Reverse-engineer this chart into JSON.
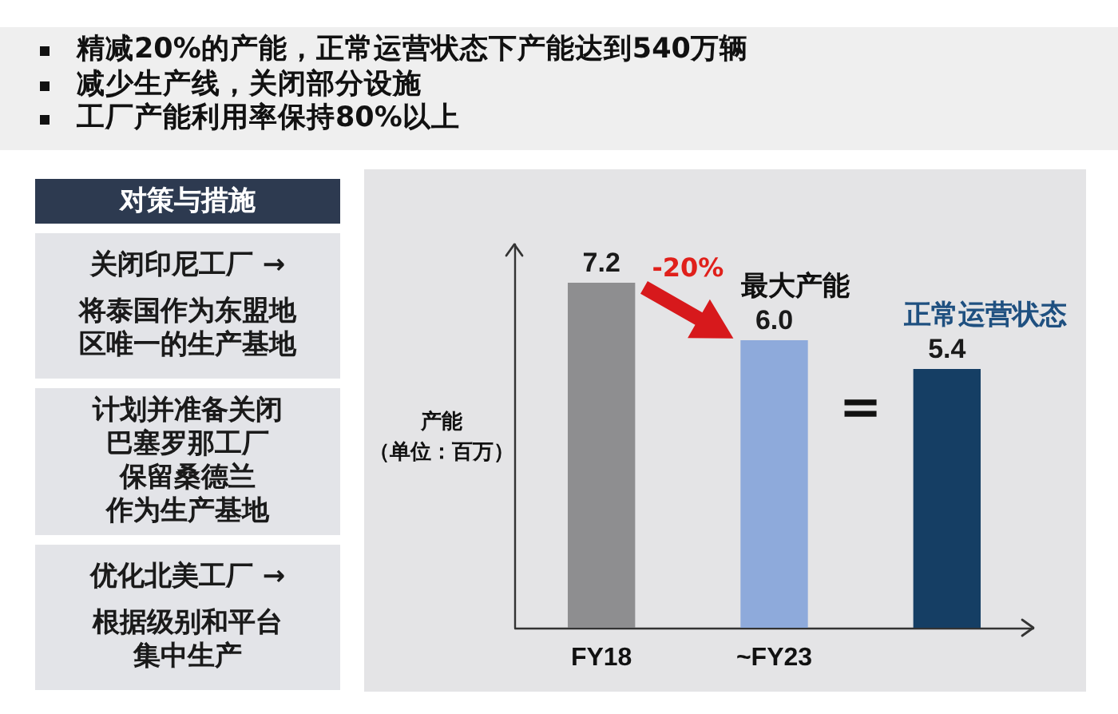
{
  "chart_data": [
    {
      "type": "other",
      "annotations": [
        "精减20%的产能，正常运营状态下产能达到540万辆",
        "减少生产线，关闭部分设施",
        "工厂产能利用率保持80%以上"
      ]
    },
    {
      "type": "other",
      "title": "对策与措施",
      "annotations": [
        "关闭印尼工厂 →",
        "将泰国作为东盟地区唯一的生产基地",
        "计划并准备关闭",
        "巴塞罗那工厂",
        "保留桑德兰",
        "作为生产基地",
        "优化北美工厂 →",
        "根据级别和平台集中生产"
      ]
    },
    {
      "type": "bar",
      "categories": [
        "FY18",
        "~FY23",
        null
      ],
      "values": [
        7.2,
        6.0,
        5.4
      ],
      "value_labels": [
        "7.2",
        "6.0",
        "5.4"
      ],
      "colors": [
        "#8e8e90",
        "#8eaadb",
        "#153e64"
      ],
      "ylabel": "产能（单位：百万）",
      "tick_labels": "x",
      "annotations": [
        "-20%",
        "最大产能",
        "=",
        "正常运营状态"
      ]
    }
  ]
}
